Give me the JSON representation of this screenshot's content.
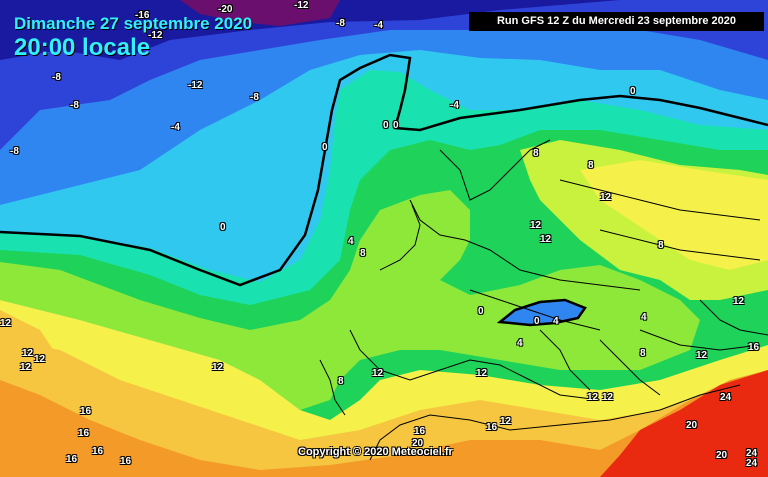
{
  "header": {
    "date_label": "Dimanche 27 septembre 2020",
    "time_label": "20:00 locale"
  },
  "run_info": "Run GFS 12 Z du Mercredi 23 septembre 2020",
  "copyright": "Copyright © 2020 Meteociel.fr",
  "colors": {
    "band_deep": "#6a0f6e",
    "band_cold1": "#1a1aa0",
    "band_cold2": "#2e44d8",
    "band_cold3": "#2f86f0",
    "band_cool": "#31c8f0",
    "band_mild1": "#19e2b0",
    "band_mild2": "#1fd25a",
    "band_lime": "#8ee83a",
    "band_yellow_green": "#c8f23e",
    "band_yellow": "#f5f04a",
    "band_amber": "#f7c640",
    "band_orange": "#f39a28",
    "band_red": "#ea2a10",
    "zero_isoline": "#000000",
    "borders": "#000000"
  },
  "isotherm_labels": [
    "-20",
    "-16",
    "-12",
    "-12",
    "-8",
    "-8",
    "-8",
    "-8",
    "-8",
    "-4",
    "-4",
    "-4",
    "-12",
    "0",
    "0",
    "0",
    "0",
    "0",
    "0",
    "0",
    "4",
    "4",
    "4",
    "4",
    "8",
    "8",
    "8",
    "8",
    "8",
    "8",
    "12",
    "12",
    "12",
    "12",
    "12",
    "12",
    "12",
    "12",
    "12",
    "12",
    "12",
    "12",
    "12",
    "12",
    "12",
    "16",
    "16",
    "16",
    "16",
    "16",
    "16",
    "16",
    "16",
    "20",
    "20",
    "20",
    "24",
    "24",
    "24"
  ]
}
